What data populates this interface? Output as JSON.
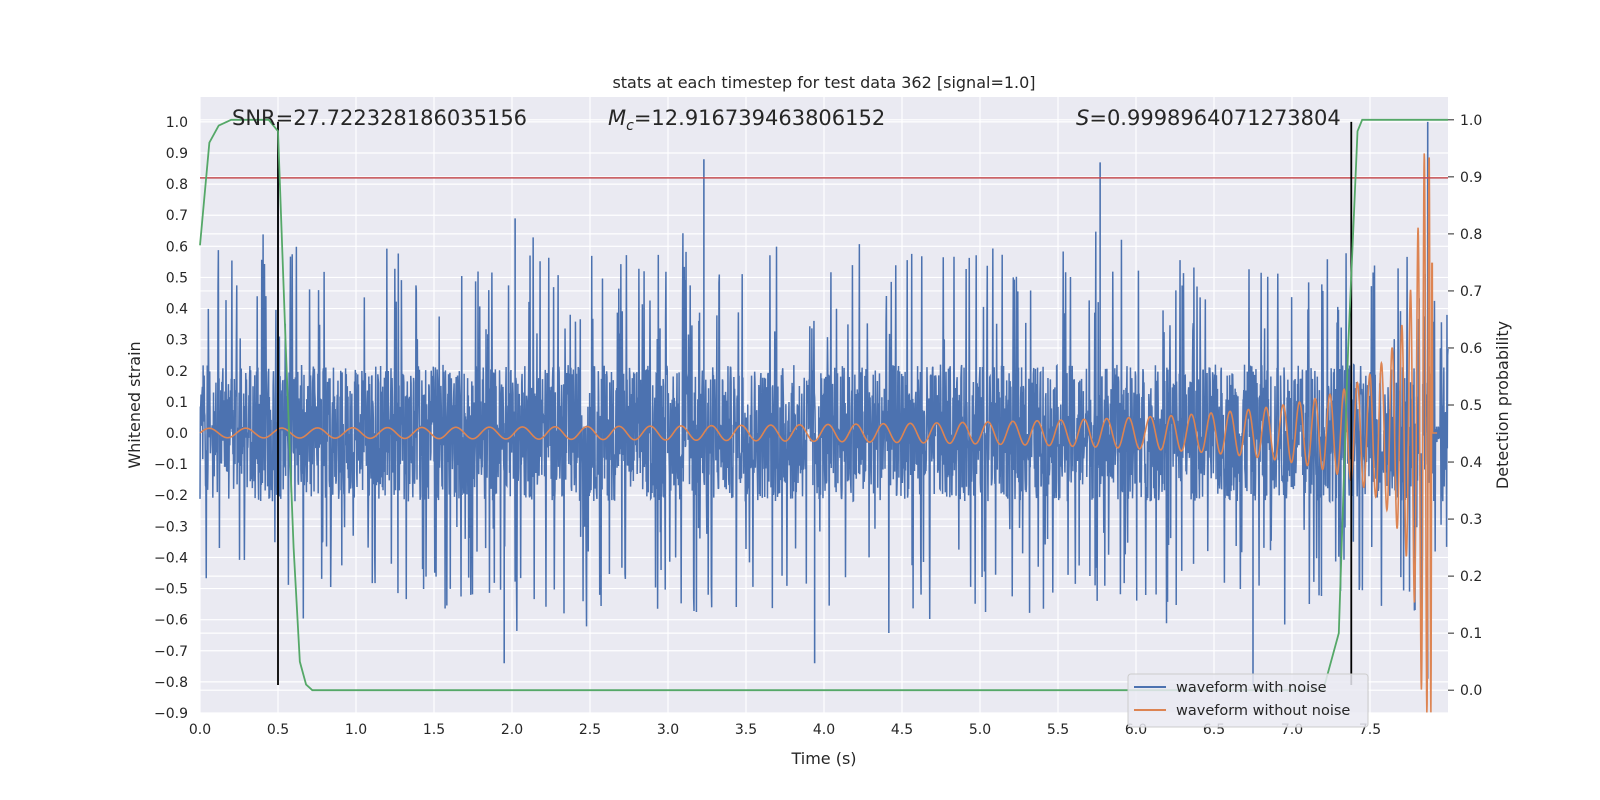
{
  "chart_data": {
    "type": "line",
    "title": "stats at each timestep for test data 362 [signal=1.0]",
    "xlabel": "Time (s)",
    "ylabel": "Whitened strain",
    "y2label": "Detection probability",
    "xlim": [
      0.0,
      8.0
    ],
    "ylim": [
      -0.9,
      1.08
    ],
    "y2lim": [
      -0.04,
      1.04
    ],
    "x_ticks": [
      "0.0",
      "0.5",
      "1.0",
      "1.5",
      "2.0",
      "2.5",
      "3.0",
      "3.5",
      "4.0",
      "4.5",
      "5.0",
      "5.5",
      "6.0",
      "6.5",
      "7.0",
      "7.5"
    ],
    "y_ticks": [
      "1.0",
      "0.9",
      "0.8",
      "0.7",
      "0.6",
      "0.5",
      "0.4",
      "0.3",
      "0.2",
      "0.1",
      "0.0",
      "−0.1",
      "−0.2",
      "−0.3",
      "−0.4",
      "−0.5",
      "−0.6",
      "−0.7",
      "−0.8",
      "−0.9"
    ],
    "y2_ticks": [
      "1.0",
      "0.9",
      "0.8",
      "0.7",
      "0.6",
      "0.5",
      "0.4",
      "0.3",
      "0.2",
      "0.1",
      "0.0"
    ],
    "grid": true,
    "legend_position": "bottom-right",
    "annotations": {
      "snr": "SNR=27.722328186035156",
      "mc_symbol": "M",
      "mc_sub": "c",
      "mc_value": "=12.916739463806152",
      "s_symbol": "S",
      "s_value": "=0.9998964071273804"
    },
    "threshold_line": {
      "y": 0.82,
      "color": "#c44e52"
    },
    "vertical_markers": [
      {
        "x": 0.5,
        "y_from": -0.81,
        "y_to": 1.0
      },
      {
        "x": 7.38,
        "y_from": -0.81,
        "y_to": 1.0
      }
    ],
    "series": [
      {
        "name": "waveform with noise",
        "axis": "left",
        "color": "#4c72b0",
        "x_range": [
          0.0,
          8.0
        ],
        "noise_core_amplitude": 0.22,
        "peak_spikes": [
          {
            "x": 0.5,
            "y": 0.85
          },
          {
            "x": 2.02,
            "y": 0.69
          },
          {
            "x": 3.23,
            "y": 0.88
          },
          {
            "x": 5.77,
            "y": 0.87
          },
          {
            "x": 7.87,
            "y": 1.0
          },
          {
            "x": 1.95,
            "y": -0.74
          },
          {
            "x": 3.94,
            "y": -0.74
          },
          {
            "x": 6.75,
            "y": -0.81
          },
          {
            "x": 7.87,
            "y": -0.79
          }
        ]
      },
      {
        "name": "waveform without noise",
        "axis": "left",
        "color": "#dd8452",
        "x_range": [
          0.0,
          7.93
        ],
        "amplitude_start": 0.015,
        "amplitude_end": 0.9,
        "merger_time": 7.9
      },
      {
        "name": "Detection probability",
        "axis": "right",
        "color": "#55a868",
        "x": [
          0.0,
          0.06,
          0.12,
          0.2,
          0.3,
          0.38,
          0.44,
          0.5,
          0.55,
          0.6,
          0.64,
          0.68,
          0.72,
          0.8,
          1.0,
          2.0,
          3.0,
          4.0,
          5.0,
          6.0,
          7.0,
          7.2,
          7.3,
          7.36,
          7.42,
          7.45,
          7.6,
          7.8,
          8.0
        ],
        "y": [
          0.78,
          0.96,
          0.99,
          1.0,
          1.0,
          1.0,
          1.0,
          0.98,
          0.6,
          0.25,
          0.05,
          0.01,
          0.0,
          0.0,
          0.0,
          0.0,
          0.0,
          0.0,
          0.0,
          0.0,
          0.0,
          0.0,
          0.1,
          0.6,
          0.98,
          1.0,
          1.0,
          1.0,
          1.0
        ]
      }
    ]
  },
  "legend": {
    "items": [
      {
        "label": "waveform with noise",
        "color": "#4c72b0"
      },
      {
        "label": "waveform without noise",
        "color": "#dd8452"
      }
    ]
  }
}
